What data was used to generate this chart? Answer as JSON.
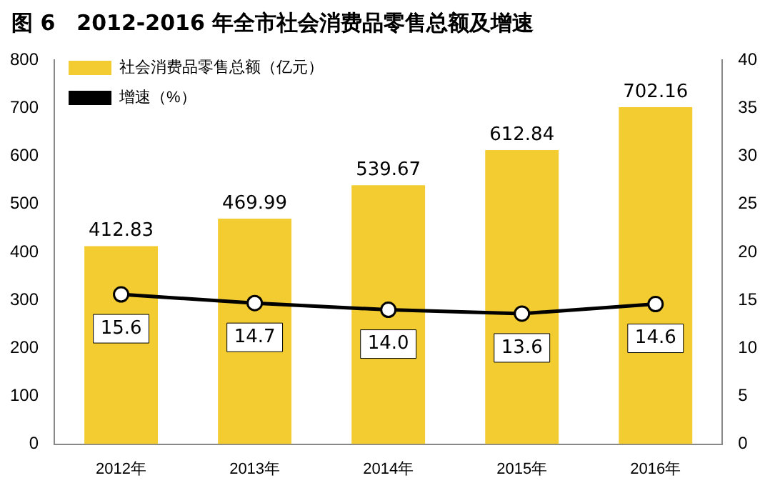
{
  "chart_data": {
    "type": "bar",
    "title": "图 6　2012-2016 年全市社会消费品零售总额及增速",
    "categories": [
      "2012年",
      "2013年",
      "2014年",
      "2015年",
      "2016年"
    ],
    "series": [
      {
        "name": "社会消费品零售总额（亿元）",
        "color": "#f2cc30",
        "values": [
          412.83,
          469.99,
          539.67,
          612.84,
          702.16
        ]
      },
      {
        "name": "增速（%）",
        "type": "line",
        "axis": "y2",
        "color": "#000000",
        "marker": "circle",
        "values": [
          15.6,
          14.7,
          14.0,
          13.6,
          14.6
        ],
        "value_labels": [
          "15.6",
          "14.7",
          "14.0",
          "13.6",
          "14.6"
        ]
      }
    ],
    "ylim": [
      0,
      800
    ],
    "yticks": [
      0,
      100,
      200,
      300,
      400,
      500,
      600,
      700,
      800
    ],
    "y2lim": [
      0,
      40
    ],
    "y2ticks": [
      0,
      5,
      10,
      15,
      20,
      25,
      30,
      35,
      40
    ],
    "grid": false,
    "legend": "top left",
    "data_labels": true
  }
}
